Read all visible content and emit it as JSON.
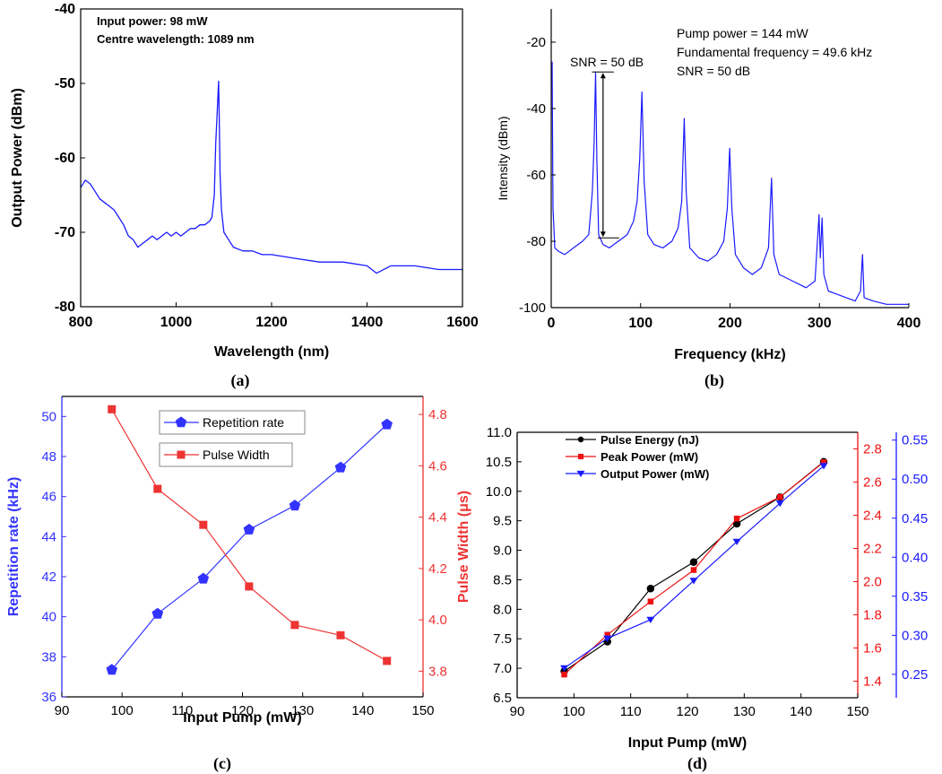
{
  "chart_data": [
    {
      "type": "line",
      "panel": "(a)",
      "xlabel": "Wavelength (nm)",
      "ylabel": "Output Power (dBm)",
      "xlim": [
        800,
        1600
      ],
      "ylim": [
        -80,
        -40
      ],
      "xticks": [
        800,
        1000,
        1200,
        1400,
        1600
      ],
      "yticks": [
        -80,
        -70,
        -60,
        -50,
        -40
      ],
      "annotations": [
        "Input power: 98 mW",
        "Centre wavelength: 1089 nm"
      ],
      "color": "#1a1aff",
      "series": [
        {
          "x": [
            800,
            810,
            820,
            830,
            840,
            850,
            860,
            870,
            880,
            890,
            900,
            910,
            920,
            930,
            940,
            950,
            960,
            970,
            980,
            990,
            1000,
            1010,
            1020,
            1030,
            1040,
            1050,
            1060,
            1070,
            1075,
            1080,
            1083,
            1086,
            1088,
            1089,
            1090,
            1092,
            1095,
            1100,
            1110,
            1120,
            1140,
            1160,
            1180,
            1200,
            1250,
            1300,
            1350,
            1400,
            1420,
            1450,
            1500,
            1550,
            1600
          ],
          "y": [
            -64,
            -63,
            -63.5,
            -64.5,
            -65.5,
            -66,
            -66.5,
            -67,
            -68,
            -69,
            -70.5,
            -71,
            -72,
            -71.5,
            -71,
            -70.5,
            -71,
            -70.5,
            -70,
            -70.5,
            -70,
            -70.5,
            -70,
            -69.5,
            -69.5,
            -69,
            -69,
            -68.5,
            -68,
            -65,
            -58,
            -54,
            -51,
            -49.7,
            -53,
            -62,
            -67,
            -70,
            -71,
            -72,
            -72.5,
            -72.5,
            -73,
            -73,
            -73.5,
            -74,
            -74,
            -74.5,
            -75.5,
            -74.5,
            -74.5,
            -75,
            -75
          ]
        }
      ]
    },
    {
      "type": "line",
      "panel": "(b)",
      "xlabel": "Frequency (kHz)",
      "ylabel": "Intensity (dBm)",
      "xlim": [
        0,
        400
      ],
      "ylim": [
        -100,
        -10
      ],
      "xticks": [
        0,
        100,
        200,
        300,
        400
      ],
      "yticks": [
        -100,
        -80,
        -60,
        -40,
        -20
      ],
      "annotations": [
        "Pump power = 144 mW",
        "Fundamental frequency = 49.6 kHz",
        "SNR = 50 dB",
        "SNR = 50 dB"
      ],
      "color": "#1a1aff",
      "series": [
        {
          "x": [
            0,
            1,
            2,
            4,
            8,
            15,
            25,
            35,
            42,
            46,
            48,
            49.6,
            51,
            53,
            58,
            65,
            75,
            85,
            92,
            96,
            99,
            101.5,
            104,
            108,
            115,
            125,
            135,
            142,
            146,
            148.8,
            151,
            155,
            165,
            175,
            185,
            193,
            197,
            199.6,
            202,
            206,
            215,
            225,
            235,
            243,
            246.4,
            249,
            255,
            270,
            285,
            295,
            299.5,
            301,
            303,
            305,
            310,
            320,
            330,
            340,
            346,
            348.2,
            350,
            360,
            375,
            390,
            400
          ],
          "y": [
            -30,
            -26,
            -70,
            -82,
            -83,
            -84,
            -82,
            -80,
            -78,
            -65,
            -50,
            -29,
            -55,
            -78,
            -81,
            -82,
            -80,
            -78,
            -74,
            -68,
            -55,
            -35,
            -62,
            -78,
            -81,
            -82,
            -80,
            -76,
            -68,
            -43,
            -65,
            -82,
            -85,
            -86,
            -84,
            -80,
            -70,
            -52,
            -70,
            -84,
            -88,
            -90,
            -88,
            -82,
            -61,
            -84,
            -90,
            -92,
            -94,
            -92,
            -72,
            -85,
            -73,
            -90,
            -95,
            -96,
            -97,
            -98,
            -95,
            -84,
            -97,
            -98,
            -99,
            -99,
            -99
          ]
        }
      ]
    },
    {
      "type": "line",
      "panel": "(c)",
      "xlabel": "Input Pump (mW)",
      "ylabel": "Repetition rate (kHz)",
      "ylabel_right": "Pulse Width (μs)",
      "xlim": [
        90,
        150
      ],
      "ylim": [
        36,
        51
      ],
      "ylim_right": [
        3.7,
        4.87
      ],
      "xticks": [
        90,
        100,
        110,
        120,
        130,
        140,
        150
      ],
      "yticks": [
        36,
        38,
        40,
        42,
        44,
        46,
        48,
        50
      ],
      "yticks_right": [
        3.8,
        4.0,
        4.2,
        4.4,
        4.6,
        4.8
      ],
      "x": [
        98.3,
        105.9,
        113.5,
        121.1,
        128.7,
        136.3,
        144
      ],
      "series": [
        {
          "name": "Repetition rate",
          "axis": "left",
          "values": [
            37.35,
            40.15,
            41.9,
            44.35,
            45.55,
            47.45,
            49.6
          ],
          "color": "#3333ff",
          "marker": "pentagon"
        },
        {
          "name": "Pulse Width",
          "axis": "right",
          "values": [
            4.82,
            4.51,
            4.37,
            4.13,
            3.98,
            3.94,
            3.84
          ],
          "color": "#ee3333",
          "marker": "square"
        }
      ]
    },
    {
      "type": "line",
      "panel": "(d)",
      "xlabel": "Input Pump (mW)",
      "xlim": [
        90,
        150
      ],
      "ylim": [
        6.5,
        11.0
      ],
      "ylim_right1": [
        1.3,
        2.9
      ],
      "ylim_right2": [
        0.22,
        0.56
      ],
      "xticks": [
        90,
        100,
        110,
        120,
        130,
        140,
        150
      ],
      "yticks": [
        6.5,
        7.0,
        7.5,
        8.0,
        8.5,
        9.0,
        9.5,
        10.0,
        10.5,
        11.0
      ],
      "yticks_right1": [
        1.4,
        1.6,
        1.8,
        2.0,
        2.2,
        2.4,
        2.6,
        2.8
      ],
      "yticks_right2": [
        0.25,
        0.3,
        0.35,
        0.4,
        0.45,
        0.5,
        0.55
      ],
      "x": [
        98.3,
        105.9,
        113.5,
        121.1,
        128.7,
        136.3,
        144
      ],
      "series": [
        {
          "name": "Pulse Energy (nJ)",
          "axis": "left",
          "values": [
            6.95,
            7.45,
            8.35,
            8.8,
            9.45,
            9.9,
            10.5
          ],
          "color": "#000000",
          "marker": "circle"
        },
        {
          "name": "Peak Power (mW)",
          "axis": "right1",
          "values": [
            1.44,
            1.68,
            1.88,
            2.07,
            2.38,
            2.51,
            2.72
          ],
          "color": "#ee1111",
          "marker": "square"
        },
        {
          "name": "Output Power (mW)",
          "axis": "right2",
          "values": [
            0.258,
            0.296,
            0.32,
            0.37,
            0.42,
            0.469,
            0.517
          ],
          "color": "#1a1aff",
          "marker": "triangle-down"
        }
      ]
    }
  ],
  "captions": [
    "(a)",
    "(b)",
    "(c)",
    "(d)"
  ],
  "colors": {
    "blue": "#1a1aff",
    "red": "#ee1111",
    "black": "#000000"
  }
}
